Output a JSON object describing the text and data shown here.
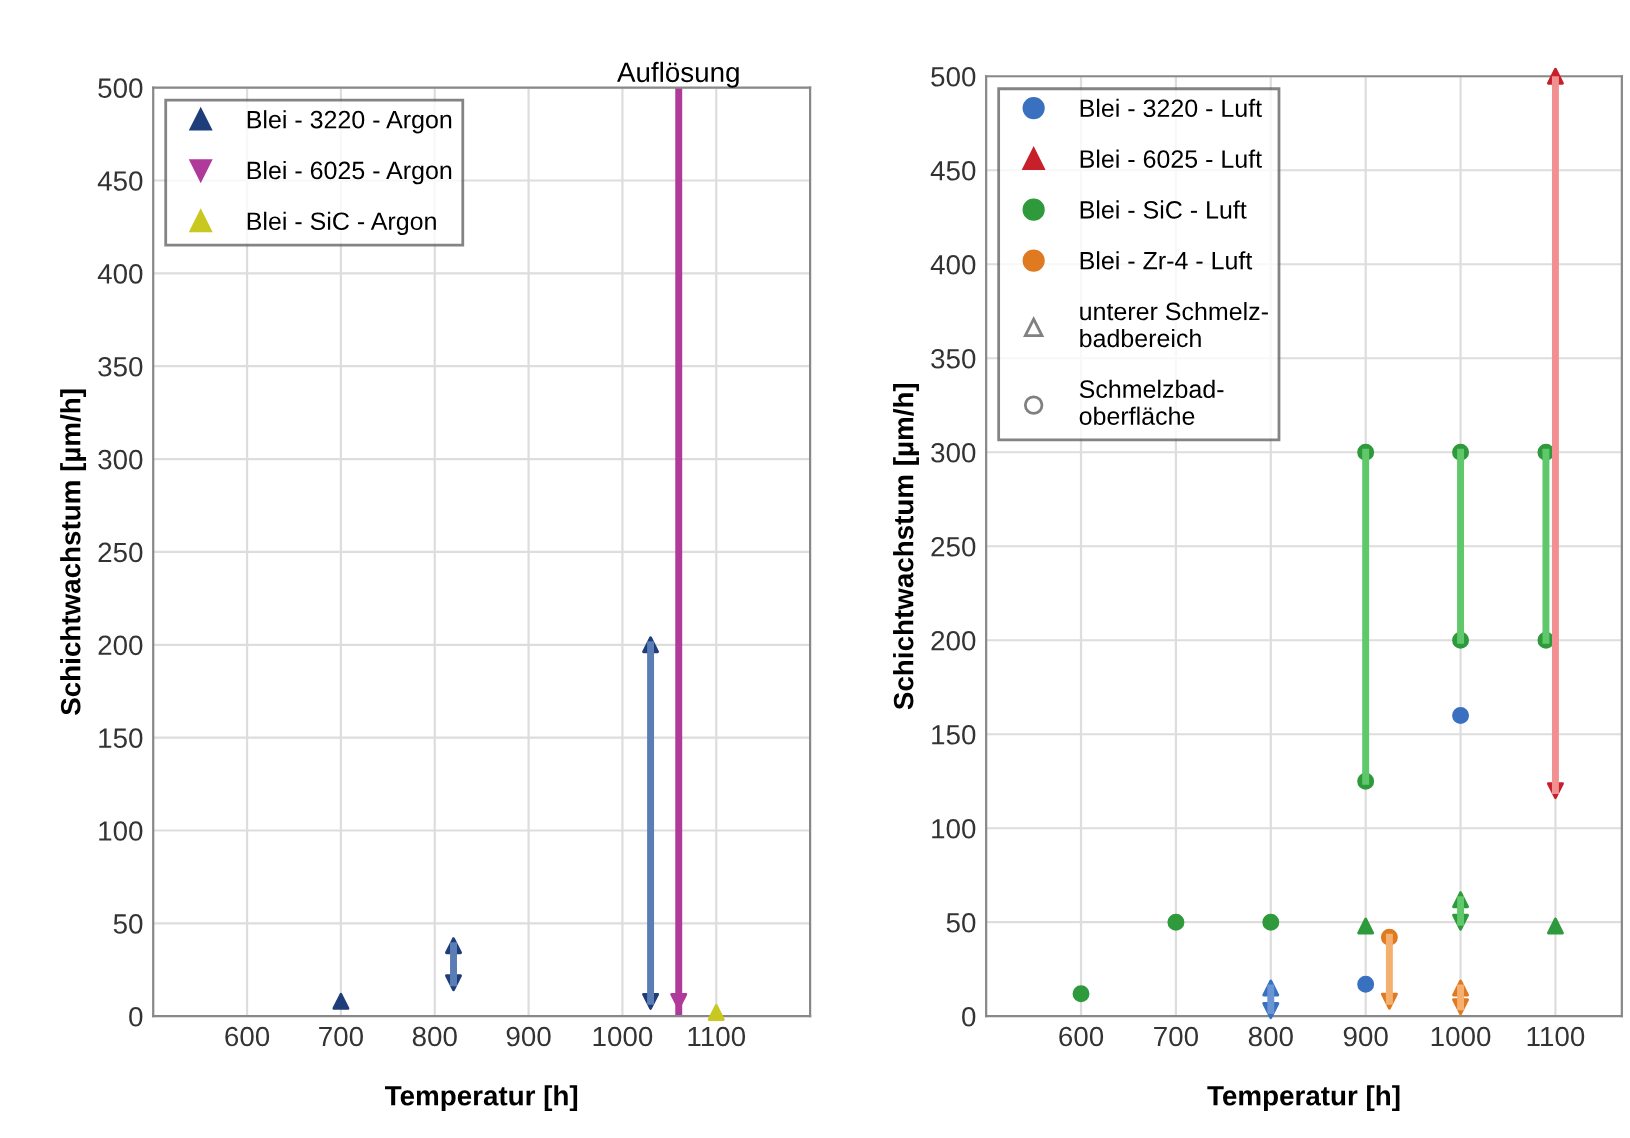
{
  "chart_data": [
    {
      "type": "scatter",
      "xlabel": "Temperatur [h]",
      "ylabel": "Schichtwachstum [µm/h]",
      "xlim": [
        500,
        1200
      ],
      "xticks": [
        600,
        700,
        800,
        900,
        1000,
        1100
      ],
      "ylim": [
        0,
        500
      ],
      "yticks": [
        0,
        50,
        100,
        150,
        200,
        250,
        300,
        350,
        400,
        450,
        500
      ],
      "grid": true,
      "legend": "top left",
      "ref_lines": [
        {
          "axis": "x",
          "value": 1060,
          "label": "Auflösung",
          "color": "#b03a9a"
        }
      ],
      "series": [
        {
          "type": "line",
          "color": "#5a7db5",
          "x": [
            820,
            820
          ],
          "values": [
            18,
            38
          ]
        },
        {
          "type": "line",
          "color": "#5a7db5",
          "x": [
            1030,
            1030
          ],
          "values": [
            8,
            200
          ]
        },
        {
          "type": "scatter",
          "name": "Blei - 3220 - Argon",
          "color": "#1f3d7a",
          "marker": "triangle",
          "x": [
            700,
            820,
            1030
          ],
          "values": [
            8,
            38,
            200
          ]
        },
        {
          "type": "scatter",
          "color": "#1f3d7a",
          "marker": "triangle_down",
          "x": [
            820,
            1030
          ],
          "values": [
            18,
            8
          ]
        },
        {
          "type": "scatter",
          "name": "Blei - 6025 - Argon",
          "color": "#b03a9a",
          "marker": "triangle_down",
          "x": [
            1060
          ],
          "values": [
            8
          ]
        },
        {
          "type": "scatter",
          "name": "Blei - SiC - Argon",
          "color": "#c8c820",
          "marker": "triangle",
          "x": [
            1100
          ],
          "values": [
            2
          ]
        }
      ]
    },
    {
      "type": "scatter",
      "xlabel": "Temperatur [h]",
      "ylabel": "Schichtwachstum [µm/h]",
      "xlim": [
        500,
        1170
      ],
      "xticks": [
        600,
        700,
        800,
        900,
        1000,
        1100
      ],
      "ylim": [
        0,
        500
      ],
      "yticks": [
        0,
        50,
        100,
        150,
        200,
        250,
        300,
        350,
        400,
        450,
        500
      ],
      "grid": true,
      "legend": "top left",
      "series": [
        {
          "type": "line",
          "color": "#5fc86a",
          "x": [
            900,
            900
          ],
          "values": [
            125,
            300
          ]
        },
        {
          "type": "line",
          "color": "#5fc86a",
          "x": [
            1000,
            1000
          ],
          "values": [
            200,
            300
          ]
        },
        {
          "type": "line",
          "color": "#5fc86a",
          "x": [
            1090,
            1090
          ],
          "values": [
            200,
            300
          ]
        },
        {
          "type": "line",
          "color": "#5fc86a",
          "x": [
            1000,
            1000
          ],
          "values": [
            50,
            62
          ]
        },
        {
          "type": "line",
          "color": "#f09090",
          "x": [
            1100,
            1100
          ],
          "values": [
            120,
            500
          ]
        },
        {
          "type": "line",
          "color": "#f5b070",
          "x": [
            925,
            925
          ],
          "values": [
            8,
            42
          ]
        },
        {
          "type": "line",
          "color": "#f5b070",
          "x": [
            1000,
            1000
          ],
          "values": [
            5,
            15
          ]
        },
        {
          "type": "line",
          "color": "#6a95d5",
          "x": [
            800,
            800
          ],
          "values": [
            3,
            15
          ]
        },
        {
          "type": "scatter",
          "name": "Blei - 3220 - Luft",
          "color": "#3a70c0",
          "marker": "circle",
          "x": [
            900,
            1000
          ],
          "values": [
            17,
            160
          ]
        },
        {
          "type": "scatter",
          "color": "#3a70c0",
          "marker": "triangle",
          "x": [
            800
          ],
          "values": [
            15
          ]
        },
        {
          "type": "scatter",
          "color": "#3a70c0",
          "marker": "triangle_down",
          "x": [
            800
          ],
          "values": [
            3
          ]
        },
        {
          "type": "scatter",
          "name": "Blei - 6025 - Luft",
          "color": "#c8202a",
          "marker": "triangle",
          "x": [
            1100
          ],
          "values": [
            500
          ]
        },
        {
          "type": "scatter",
          "color": "#c8202a",
          "marker": "triangle_down",
          "x": [
            1100
          ],
          "values": [
            120
          ]
        },
        {
          "type": "scatter",
          "name": "Blei - SiC - Luft",
          "color": "#2e9a3c",
          "marker": "circle",
          "x": [
            600,
            700,
            800,
            900,
            900,
            1000,
            1000,
            1090,
            1090
          ],
          "values": [
            12,
            50,
            50,
            125,
            300,
            200,
            300,
            200,
            300
          ]
        },
        {
          "type": "scatter",
          "color": "#2e9a3c",
          "marker": "triangle",
          "x": [
            900,
            1000,
            1100
          ],
          "values": [
            48,
            62,
            48
          ]
        },
        {
          "type": "scatter",
          "color": "#2e9a3c",
          "marker": "triangle_down",
          "x": [
            1000
          ],
          "values": [
            50
          ]
        },
        {
          "type": "scatter",
          "name": "Blei - Zr-4 - Luft",
          "color": "#e07a20",
          "marker": "circle",
          "x": [
            925
          ],
          "values": [
            42
          ]
        },
        {
          "type": "scatter",
          "color": "#e07a20",
          "marker": "triangle",
          "x": [
            1000
          ],
          "values": [
            15
          ]
        },
        {
          "type": "scatter",
          "color": "#e07a20",
          "marker": "triangle_down",
          "x": [
            925,
            1000
          ],
          "values": [
            8,
            5
          ]
        },
        {
          "type": "scatter",
          "name": "unterer Schmelz-\nbadbereich",
          "color": "#808080",
          "marker": "triangle"
        },
        {
          "type": "scatter",
          "name": "Schmelzbad-\noberfläche",
          "color": "#808080",
          "marker": "circle"
        }
      ]
    }
  ]
}
